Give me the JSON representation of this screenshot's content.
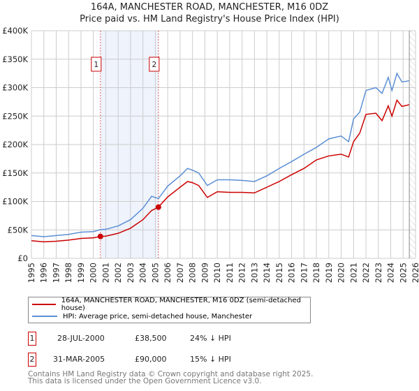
{
  "chart_data": {
    "type": "line",
    "title": "164A, MANCHESTER ROAD, MANCHESTER, M16 0DZ",
    "subtitle": "Price paid vs. HM Land Registry's House Price Index (HPI)",
    "xlim": [
      1995,
      2026
    ],
    "ylim": [
      0,
      400000
    ],
    "yticks": [
      0,
      50000,
      100000,
      150000,
      200000,
      250000,
      300000,
      350000,
      400000
    ],
    "ytick_labels": [
      "£0",
      "£50K",
      "£100K",
      "£150K",
      "£200K",
      "£250K",
      "£300K",
      "£350K",
      "£400K"
    ],
    "xticks": [
      1995,
      1996,
      1997,
      1998,
      1999,
      2000,
      2001,
      2002,
      2003,
      2004,
      2005,
      2006,
      2007,
      2008,
      2009,
      2010,
      2011,
      2012,
      2013,
      2014,
      2015,
      2016,
      2017,
      2018,
      2019,
      2020,
      2021,
      2022,
      2023,
      2024,
      2025,
      2026
    ],
    "grid": true,
    "shaded_range": [
      2000.57,
      2005.25
    ],
    "forecast_hatch_from": 2025.5,
    "series": [
      {
        "name": "164A, MANCHESTER ROAD, MANCHESTER, M16 0DZ (semi-detached house)",
        "color": "#cc0000",
        "x": [
          1995,
          1996,
          1997,
          1998,
          1999,
          2000,
          2000.57,
          2001,
          2002,
          2003,
          2004,
          2004.7,
          2005.25,
          2006,
          2007,
          2007.6,
          2008,
          2008.5,
          2009.2,
          2010,
          2011,
          2012,
          2013,
          2014,
          2015,
          2016,
          2017,
          2018,
          2019,
          2020,
          2020.6,
          2021,
          2021.5,
          2022,
          2022.8,
          2023.3,
          2023.8,
          2024.1,
          2024.5,
          2024.9,
          2025.5
        ],
        "y": [
          31000,
          29000,
          30000,
          32000,
          35000,
          36000,
          38500,
          39000,
          44000,
          53000,
          68000,
          84000,
          90000,
          108000,
          125000,
          135000,
          133000,
          128000,
          107000,
          117000,
          116000,
          116000,
          115000,
          125000,
          135000,
          147000,
          158000,
          173000,
          180000,
          183000,
          178000,
          205000,
          220000,
          253000,
          255000,
          242000,
          268000,
          250000,
          278000,
          267000,
          270000
        ]
      },
      {
        "name": "HPI: Average price, semi-detached house, Manchester",
        "color": "#5b8fd4",
        "x": [
          1995,
          1996,
          1997,
          1998,
          1999,
          2000,
          2000.57,
          2001,
          2002,
          2003,
          2004,
          2004.7,
          2005.25,
          2006,
          2007,
          2007.6,
          2008,
          2008.5,
          2009.2,
          2010,
          2011,
          2012,
          2013,
          2014,
          2015,
          2016,
          2017,
          2018,
          2019,
          2020,
          2020.6,
          2021,
          2021.5,
          2022,
          2022.8,
          2023.3,
          2023.8,
          2024.1,
          2024.5,
          2024.9,
          2025.5
        ],
        "y": [
          40000,
          38000,
          40000,
          42000,
          46000,
          47000,
          50500,
          51000,
          57000,
          68000,
          88000,
          109000,
          105000,
          127000,
          145000,
          158000,
          155000,
          150000,
          128000,
          138000,
          138000,
          137000,
          135000,
          145000,
          158000,
          170000,
          183000,
          195000,
          210000,
          215000,
          205000,
          245000,
          257000,
          295000,
          300000,
          290000,
          318000,
          295000,
          325000,
          310000,
          312000
        ]
      }
    ],
    "sales": [
      {
        "label": "1",
        "date": "28-JUL-2000",
        "x": 2000.57,
        "price": "£38,500",
        "value": 38500,
        "hpi": "24% ↓ HPI"
      },
      {
        "label": "2",
        "date": "31-MAR-2005",
        "x": 2005.25,
        "price": "£90,000",
        "value": 90000,
        "hpi": "15% ↓ HPI"
      }
    ]
  },
  "footer": {
    "line1": "Contains HM Land Registry data © Crown copyright and database right 2025.",
    "line2": "This data is licensed under the Open Government Licence v3.0."
  }
}
